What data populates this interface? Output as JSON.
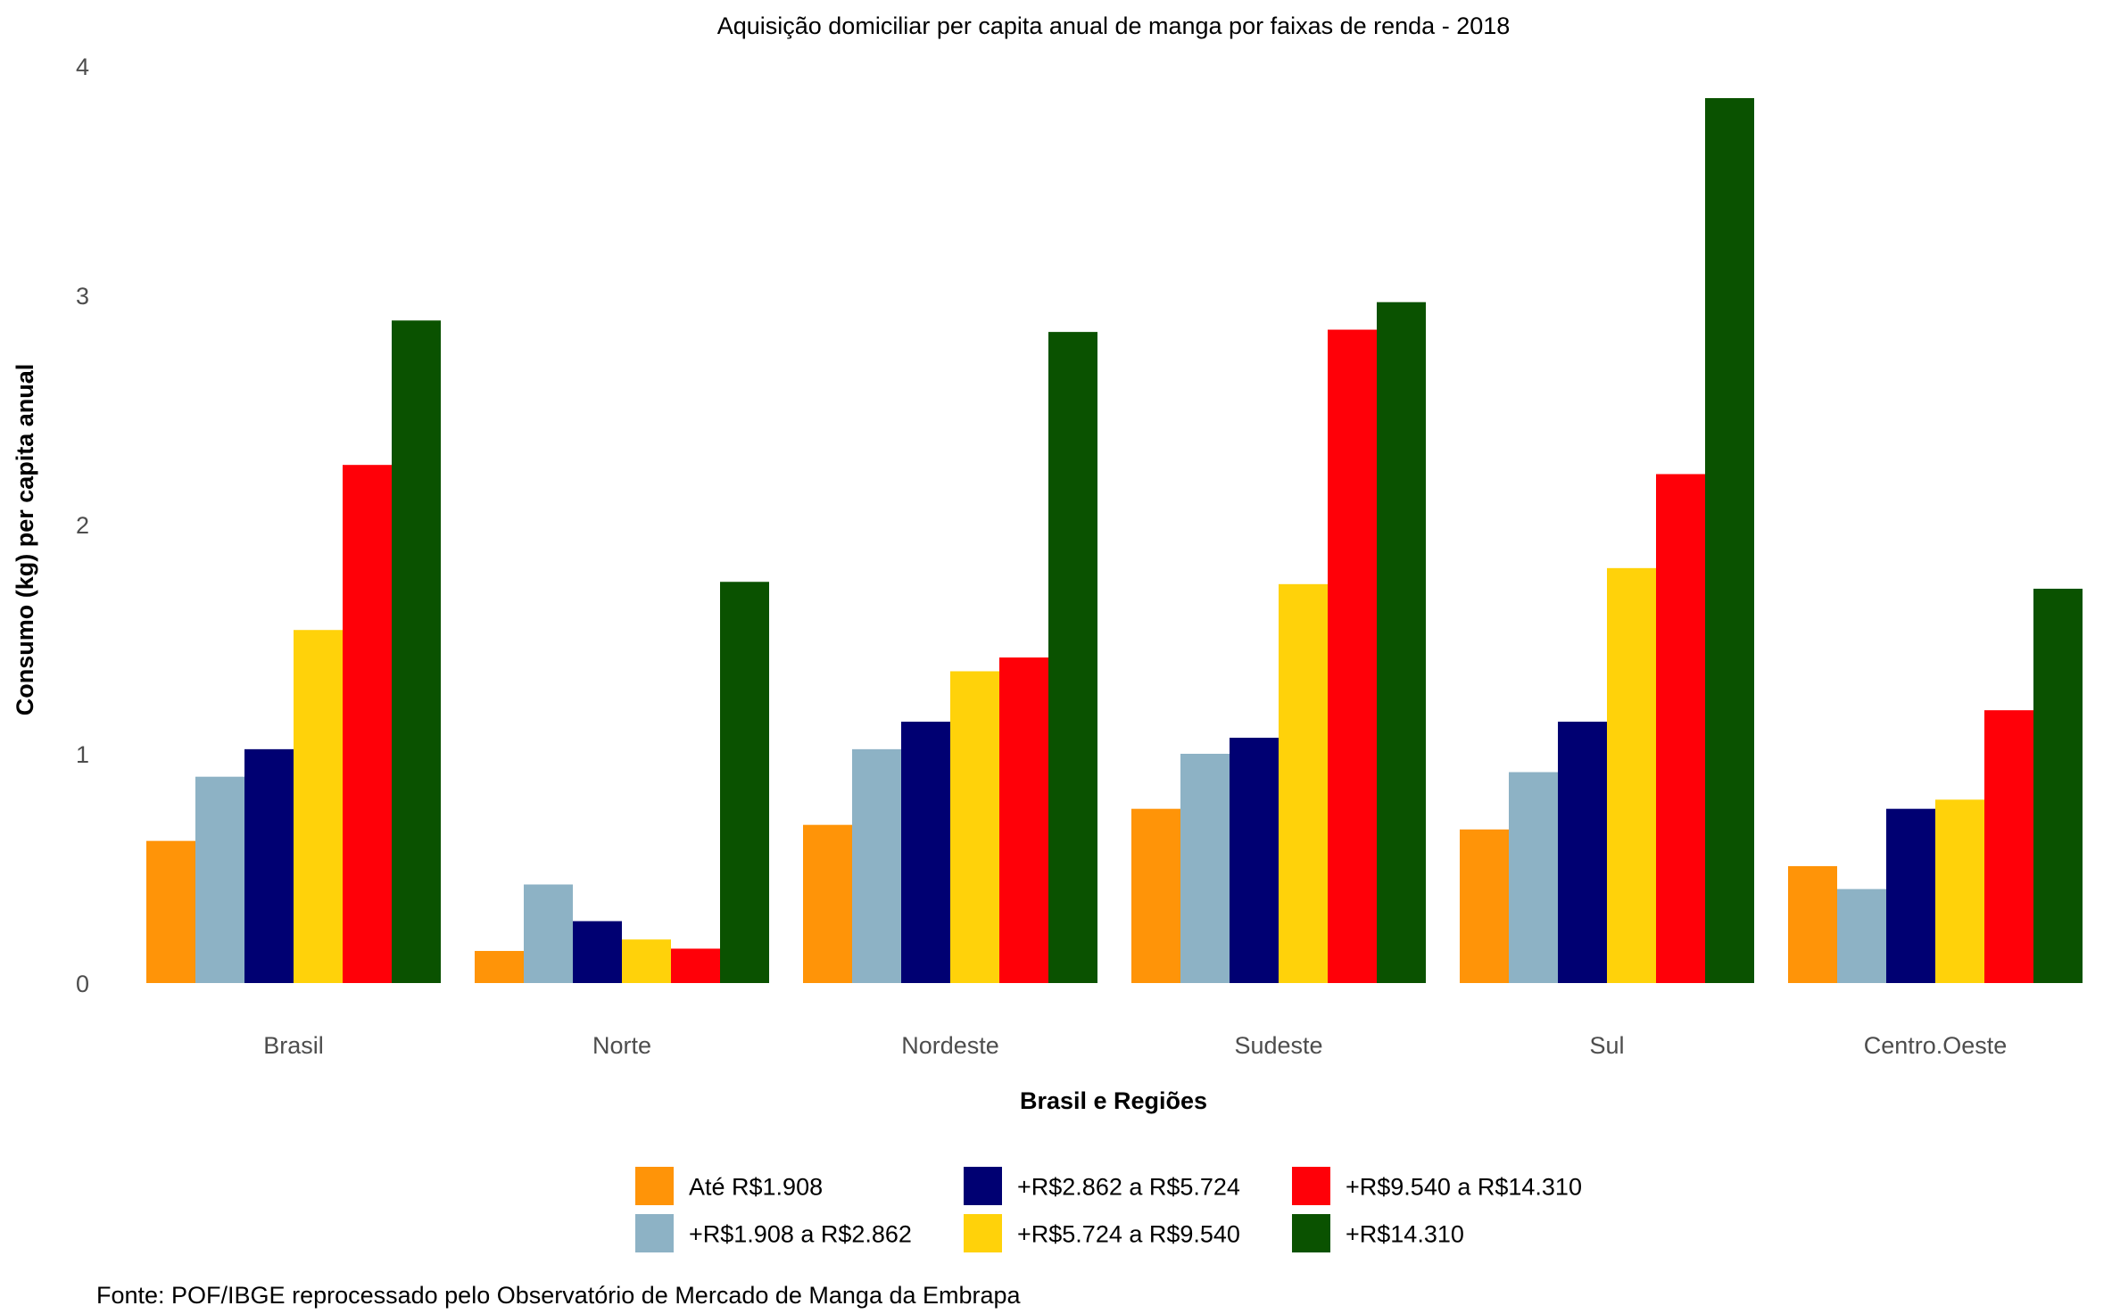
{
  "chart_data": {
    "type": "bar",
    "title": "Aquisição domiciliar per capita anual de manga por faixas de renda - 2018",
    "xlabel": "Brasil e Regiões",
    "ylabel": "Consumo (kg) per capita anual",
    "caption": "Fonte: POF/IBGE reprocessado pelo Observatório de Mercado de Manga da Embrapa",
    "ylim": [
      0,
      4
    ],
    "yticks": [
      0,
      1,
      2,
      3,
      4
    ],
    "grid": false,
    "legend_position": "bottom",
    "categories": [
      "Brasil",
      "Norte",
      "Nordeste",
      "Sudeste",
      "Sul",
      "Centro.Oeste"
    ],
    "series": [
      {
        "name": "Até R$1.908",
        "color": "#FF9408",
        "values": [
          0.62,
          0.14,
          0.69,
          0.76,
          0.67,
          0.51
        ]
      },
      {
        "name": "+R$1.908 a R$2.862",
        "color": "#8DB2C5",
        "values": [
          0.9,
          0.43,
          1.02,
          1.0,
          0.92,
          0.41
        ]
      },
      {
        "name": "+R$2.862 a R$5.724",
        "color": "#000072",
        "values": [
          1.02,
          0.27,
          1.14,
          1.07,
          1.14,
          0.76
        ]
      },
      {
        "name": "+R$5.724 a R$9.540",
        "color": "#FFD20A",
        "values": [
          1.54,
          0.19,
          1.36,
          1.74,
          1.81,
          0.8
        ]
      },
      {
        "name": "+R$9.540 a R$14.310",
        "color": "#FF0008",
        "values": [
          2.26,
          0.15,
          1.42,
          2.85,
          2.22,
          1.19
        ]
      },
      {
        "name": "+R$14.310",
        "color": "#0A5200",
        "values": [
          2.89,
          1.75,
          2.84,
          2.97,
          3.86,
          1.72
        ]
      }
    ]
  }
}
